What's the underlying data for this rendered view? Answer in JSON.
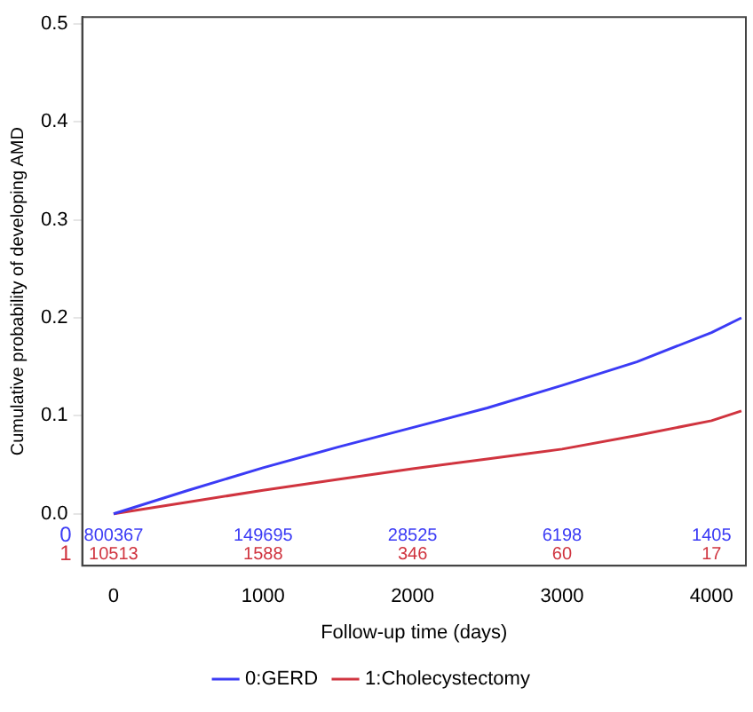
{
  "chart_data": {
    "type": "line",
    "xlabel": "Follow-up time (days)",
    "ylabel": "Cumulative probability of developing AMD",
    "xlim": [
      -210,
      4230
    ],
    "xticks": [
      0,
      1000,
      2000,
      3000,
      4000
    ],
    "ylim": [
      -0.053,
      0.507
    ],
    "yticks": [
      {
        "value": 0,
        "label": "0.0"
      },
      {
        "value": 0.1,
        "label": "0.1"
      },
      {
        "value": 0.2,
        "label": "0.2"
      },
      {
        "value": 0.3,
        "label": "0.3"
      },
      {
        "value": 0.4,
        "label": "0.4"
      },
      {
        "value": 0.5,
        "label": "0.5"
      }
    ],
    "series": [
      {
        "name": "0:GERD",
        "color": "#3b3bf5",
        "x": [
          0,
          500,
          1000,
          1500,
          2000,
          2500,
          3000,
          3500,
          4000,
          4200
        ],
        "values": [
          0,
          0.024,
          0.047,
          0.068,
          0.088,
          0.108,
          0.131,
          0.155,
          0.185,
          0.2
        ]
      },
      {
        "name": "1:Cholecystectomy",
        "color": "#d0343f",
        "x": [
          0,
          500,
          1000,
          1500,
          2000,
          2500,
          3000,
          3500,
          4000,
          4200
        ],
        "values": [
          0,
          0.012,
          0.024,
          0.035,
          0.046,
          0.056,
          0.066,
          0.08,
          0.095,
          0.105
        ]
      }
    ],
    "annotations": [
      "0",
      "800367",
      "149695",
      "28525",
      "6198",
      "1405",
      "1",
      "10513",
      "1588",
      "346",
      "60",
      "17"
    ],
    "grid": false,
    "legend": "bottom",
    "marker": "none",
    "line_style": "solid"
  }
}
